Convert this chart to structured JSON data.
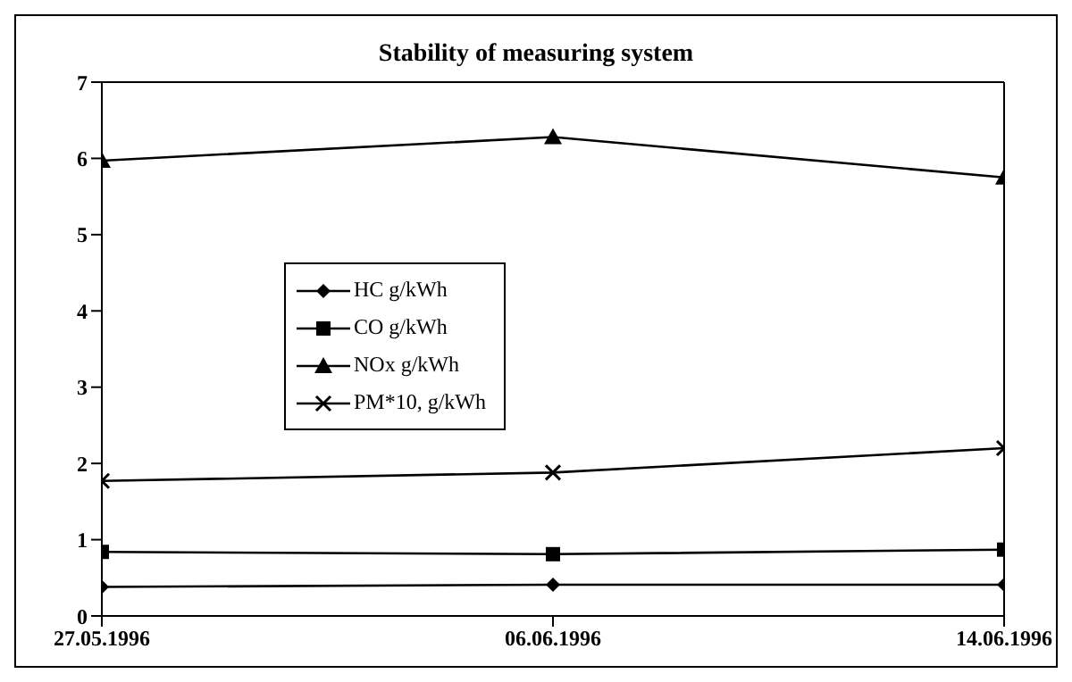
{
  "chart_data": {
    "type": "line",
    "title": "Stability of measuring system",
    "categories": [
      "27.05.1996",
      "06.06.1996",
      "14.06.1996"
    ],
    "series": [
      {
        "name": "HC g/kWh",
        "color": "#000000",
        "marker": "diamond",
        "values": [
          0.38,
          0.41,
          0.41
        ]
      },
      {
        "name": "CO g/kWh",
        "color": "#000000",
        "marker": "square",
        "values": [
          0.84,
          0.81,
          0.87
        ]
      },
      {
        "name": "NOx g/kWh",
        "color": "#000000",
        "marker": "triangle",
        "values": [
          5.97,
          6.28,
          5.75
        ]
      },
      {
        "name": "PM*10, g/kWh",
        "color": "#000000",
        "marker": "cross",
        "values": [
          1.77,
          1.88,
          2.2
        ]
      }
    ],
    "ylim": [
      0,
      7
    ],
    "yticks": [
      0,
      1,
      2,
      3,
      4,
      5,
      6,
      7
    ],
    "grid": false,
    "legend": "center left",
    "line_style": "solid"
  }
}
